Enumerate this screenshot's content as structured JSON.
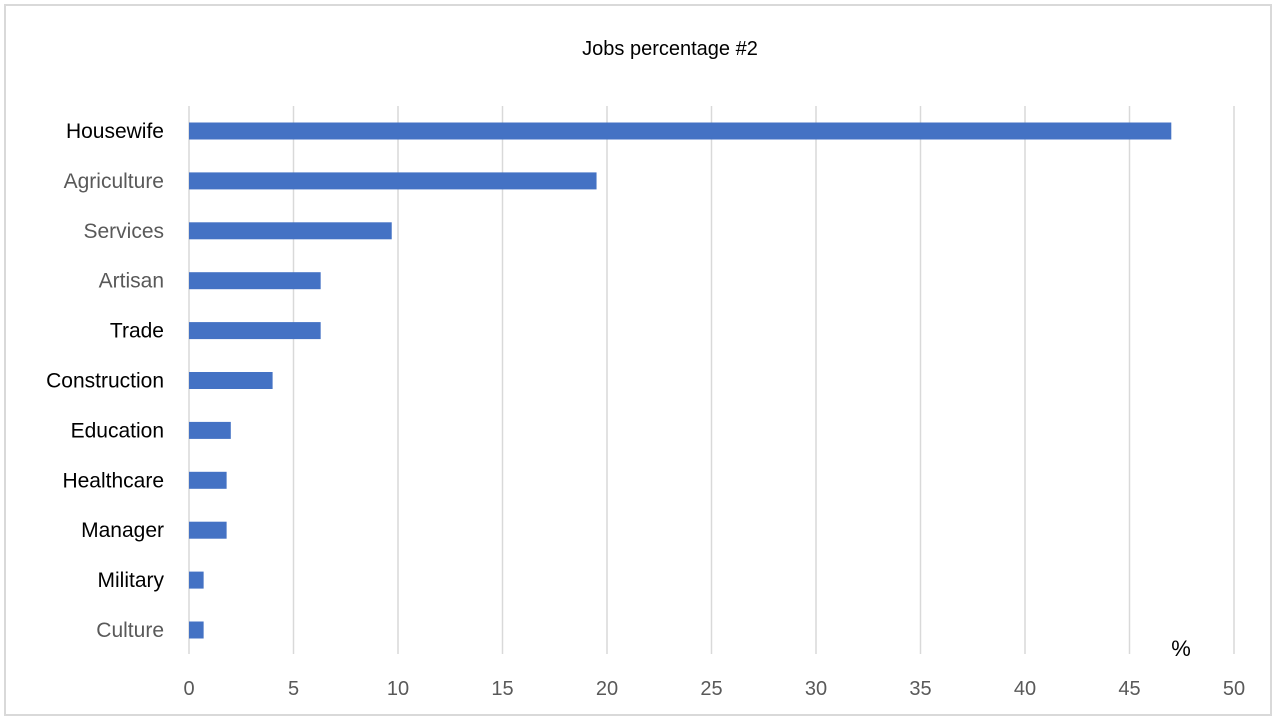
{
  "chart_data": {
    "type": "bar",
    "orientation": "horizontal",
    "title": "Jobs percentage #2",
    "categories": [
      "Housewife",
      "Agriculture",
      "Services",
      "Artisan",
      "Trade",
      "Construction",
      "Education",
      "Healthcare",
      "Manager",
      "Military",
      "Culture"
    ],
    "values": [
      47,
      19.5,
      9.7,
      6.3,
      6.3,
      4,
      2,
      1.8,
      1.8,
      0.7,
      0.7
    ],
    "x_ticks": [
      0,
      5,
      10,
      15,
      20,
      25,
      30,
      35,
      40,
      45,
      50
    ],
    "xlim": [
      0,
      50
    ],
    "unit": "%",
    "grid": true,
    "bar_color": "#4472c4",
    "grid_color": "#d9d9d9",
    "label_colors": {
      "dark": "#000000",
      "gray": "#595959"
    },
    "label_tones": [
      "dark",
      "gray",
      "gray",
      "gray",
      "dark",
      "dark",
      "dark",
      "dark",
      "dark",
      "dark",
      "gray"
    ]
  }
}
